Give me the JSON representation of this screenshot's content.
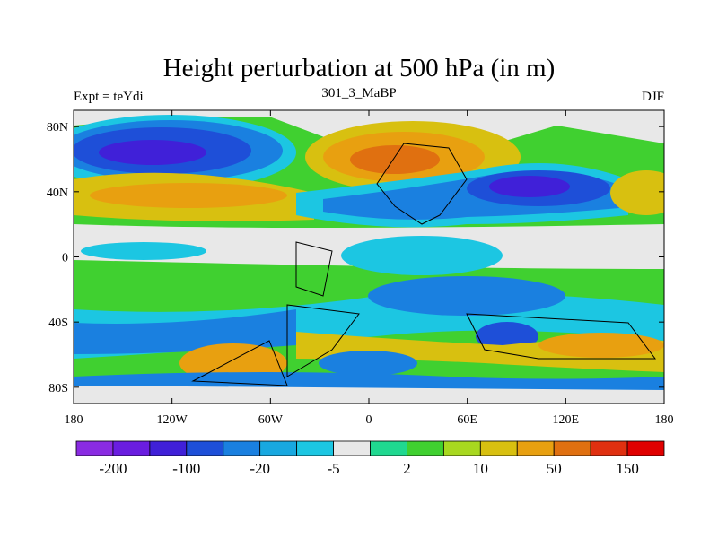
{
  "header": {
    "title": "Height perturbation at 500 hPa (in m)",
    "left_label": "Expt = teYdi",
    "center_label": "301_3_MaBP",
    "right_label": "DJF"
  },
  "map": {
    "lon_range": [
      -180,
      180
    ],
    "lat_range": [
      -90,
      90
    ],
    "x_ticks": [
      {
        "value": -180,
        "label": "180"
      },
      {
        "value": -120,
        "label": "120W"
      },
      {
        "value": -60,
        "label": "60W"
      },
      {
        "value": 0,
        "label": "0"
      },
      {
        "value": 60,
        "label": "60E"
      },
      {
        "value": 120,
        "label": "120E"
      },
      {
        "value": 180,
        "label": "180"
      }
    ],
    "y_ticks": [
      {
        "value": 80,
        "label": "80N"
      },
      {
        "value": 40,
        "label": "40N"
      },
      {
        "value": 0,
        "label": "0"
      },
      {
        "value": -40,
        "label": "40S"
      },
      {
        "value": -80,
        "label": "80S"
      }
    ]
  },
  "colorbar": {
    "colors": [
      "#8a2be2",
      "#6a1de0",
      "#4020d8",
      "#1e4fd8",
      "#1a80e0",
      "#18a8e0",
      "#1cc6e2",
      "#e8e8e8",
      "#20d890",
      "#40d030",
      "#a8d820",
      "#d8c010",
      "#e8a010",
      "#e07010",
      "#e03010",
      "#e00000"
    ],
    "labels": [
      {
        "index": 1,
        "text": "-200"
      },
      {
        "index": 3,
        "text": "-100"
      },
      {
        "index": 5,
        "text": "-20"
      },
      {
        "index": 7,
        "text": "-5"
      },
      {
        "index": 9,
        "text": "2"
      },
      {
        "index": 11,
        "text": "10"
      },
      {
        "index": 13,
        "text": "50"
      },
      {
        "index": 15,
        "text": "150"
      }
    ]
  }
}
